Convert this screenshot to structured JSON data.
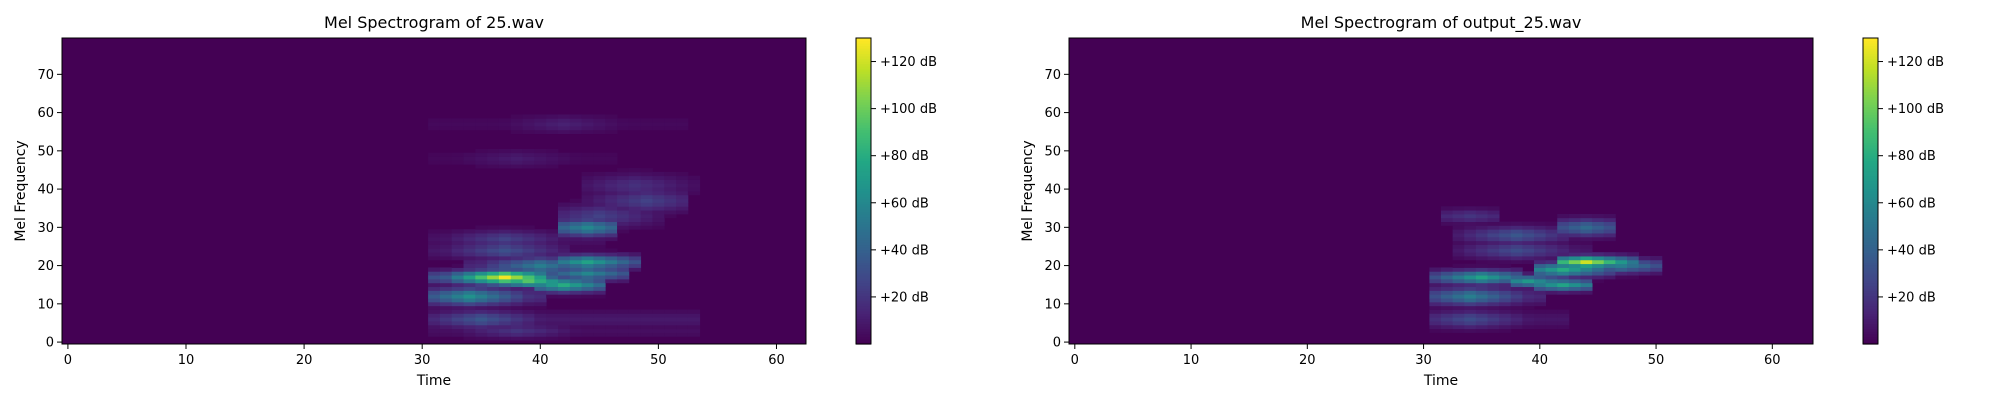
{
  "chart_data": [
    {
      "type": "heatmap",
      "title": "Mel Spectrogram of 25.wav",
      "xlabel": "Time",
      "ylabel": "Mel Frequency",
      "x_ticks": [
        0,
        10,
        20,
        30,
        40,
        50,
        60
      ],
      "y_ticks": [
        0,
        10,
        20,
        30,
        40,
        50,
        60,
        70
      ],
      "xlim": [
        -0.5,
        62.5
      ],
      "ylim": [
        -0.5,
        79.5
      ],
      "colormap": "viridis",
      "colorbar": {
        "range_db": [
          0,
          130
        ],
        "ticks": [
          "+20 dB",
          "+40 dB",
          "+60 dB",
          "+80 dB",
          "+100 dB",
          "+120 dB"
        ]
      },
      "frames": 63,
      "mel_bins": 80,
      "features": [
        {
          "band": 17,
          "t_start": 31,
          "t_end": 40,
          "peak_db": 128,
          "peak_t": 37,
          "width": 1.2
        },
        {
          "band": 16,
          "t_start": 35,
          "t_end": 41,
          "peak_db": 95,
          "peak_t": 39,
          "width": 1.0
        },
        {
          "band": 15,
          "t_start": 40,
          "t_end": 45,
          "peak_db": 80,
          "peak_t": 42,
          "width": 1.2
        },
        {
          "band": 12,
          "t_start": 31,
          "t_end": 40,
          "peak_db": 65,
          "peak_t": 34,
          "width": 1.5
        },
        {
          "band": 6,
          "t_start": 31,
          "t_end": 53,
          "peak_db": 35,
          "peak_t": 35,
          "width": 1.5
        },
        {
          "band": 3,
          "t_start": 31,
          "t_end": 53,
          "peak_db": 20,
          "peak_t": 38,
          "width": 1.2
        },
        {
          "band": 20,
          "t_start": 34,
          "t_end": 44,
          "peak_db": 55,
          "peak_t": 40,
          "width": 1.5
        },
        {
          "band": 21,
          "t_start": 42,
          "t_end": 48,
          "peak_db": 75,
          "peak_t": 44,
          "width": 1.2
        },
        {
          "band": 18,
          "t_start": 41,
          "t_end": 47,
          "peak_db": 60,
          "peak_t": 44,
          "width": 1.2
        },
        {
          "band": 24,
          "t_start": 31,
          "t_end": 42,
          "peak_db": 32,
          "peak_t": 37,
          "width": 1.5
        },
        {
          "band": 27,
          "t_start": 31,
          "t_end": 45,
          "peak_db": 25,
          "peak_t": 37,
          "width": 1.5
        },
        {
          "band": 30,
          "t_start": 42,
          "t_end": 46,
          "peak_db": 60,
          "peak_t": 44,
          "width": 1.5
        },
        {
          "band": 33,
          "t_start": 42,
          "t_end": 50,
          "peak_db": 25,
          "peak_t": 45,
          "width": 2.0
        },
        {
          "band": 37,
          "t_start": 44,
          "t_end": 52,
          "peak_db": 25,
          "peak_t": 49,
          "width": 2.0
        },
        {
          "band": 41,
          "t_start": 44,
          "t_end": 53,
          "peak_db": 18,
          "peak_t": 48,
          "width": 2.0
        },
        {
          "band": 48,
          "t_start": 31,
          "t_end": 46,
          "peak_db": 10,
          "peak_t": 38,
          "width": 1.5
        },
        {
          "band": 57,
          "t_start": 31,
          "t_end": 52,
          "peak_db": 12,
          "peak_t": 42,
          "width": 1.5
        }
      ]
    },
    {
      "type": "heatmap",
      "title": "Mel Spectrogram of output_25.wav",
      "xlabel": "Time",
      "ylabel": "Mel Frequency",
      "x_ticks": [
        0,
        10,
        20,
        30,
        40,
        50,
        60
      ],
      "y_ticks": [
        0,
        10,
        20,
        30,
        40,
        50,
        60,
        70
      ],
      "xlim": [
        -0.5,
        63.5
      ],
      "ylim": [
        -0.5,
        79.5
      ],
      "colormap": "viridis",
      "colorbar": {
        "range_db": [
          0,
          130
        ],
        "ticks": [
          "+20 dB",
          "+40 dB",
          "+60 dB",
          "+80 dB",
          "+100 dB",
          "+120 dB"
        ]
      },
      "frames": 64,
      "mel_bins": 80,
      "features": [
        {
          "band": 17,
          "t_start": 31,
          "t_end": 38,
          "peak_db": 75,
          "peak_t": 35,
          "width": 1.2
        },
        {
          "band": 16,
          "t_start": 38,
          "t_end": 42,
          "peak_db": 70,
          "peak_t": 39,
          "width": 1.0
        },
        {
          "band": 15,
          "t_start": 40,
          "t_end": 44,
          "peak_db": 75,
          "peak_t": 42,
          "width": 1.0
        },
        {
          "band": 21,
          "t_start": 42,
          "t_end": 48,
          "peak_db": 120,
          "peak_t": 44,
          "width": 1.0
        },
        {
          "band": 19,
          "t_start": 40,
          "t_end": 46,
          "peak_db": 80,
          "peak_t": 42,
          "width": 1.2
        },
        {
          "band": 20,
          "t_start": 44,
          "t_end": 50,
          "peak_db": 55,
          "peak_t": 47,
          "width": 1.2
        },
        {
          "band": 12,
          "t_start": 31,
          "t_end": 40,
          "peak_db": 55,
          "peak_t": 34,
          "width": 1.5
        },
        {
          "band": 6,
          "t_start": 31,
          "t_end": 42,
          "peak_db": 30,
          "peak_t": 34,
          "width": 1.5
        },
        {
          "band": 24,
          "t_start": 33,
          "t_end": 44,
          "peak_db": 30,
          "peak_t": 38,
          "width": 1.5
        },
        {
          "band": 28,
          "t_start": 33,
          "t_end": 42,
          "peak_db": 35,
          "peak_t": 38,
          "width": 1.5
        },
        {
          "band": 30,
          "t_start": 42,
          "t_end": 46,
          "peak_db": 45,
          "peak_t": 44,
          "width": 1.5
        },
        {
          "band": 33,
          "t_start": 32,
          "t_end": 36,
          "peak_db": 20,
          "peak_t": 34,
          "width": 1.2
        }
      ]
    }
  ]
}
